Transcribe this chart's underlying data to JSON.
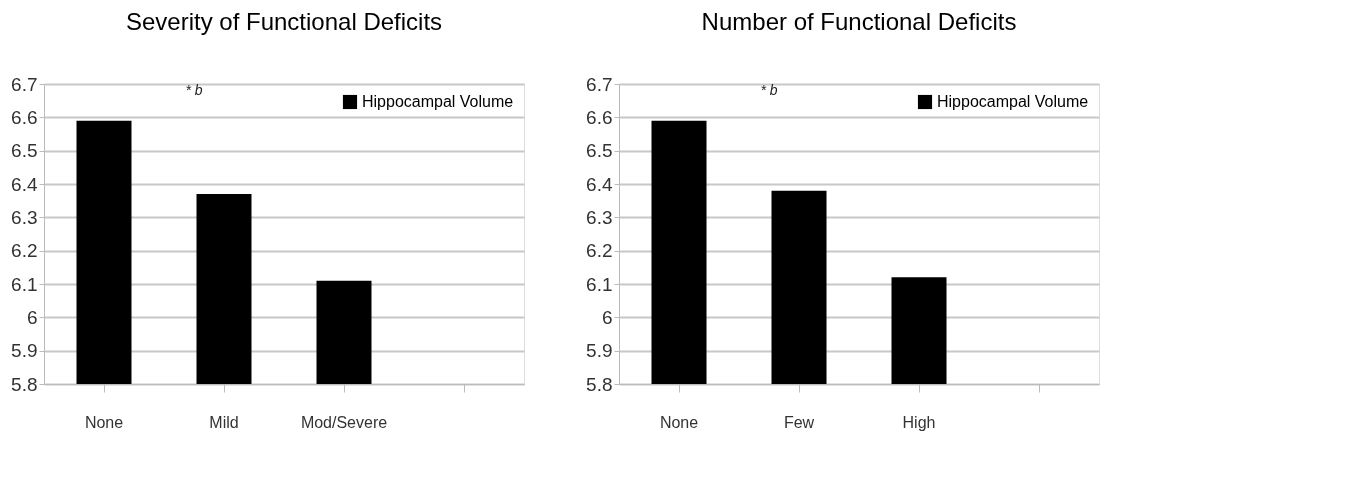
{
  "chart_data": [
    {
      "type": "bar",
      "title": "Severity of Functional Deficits",
      "categories": [
        "None",
        "Mild",
        "Mod/Severe",
        null
      ],
      "series": [
        {
          "name": "Hippocampal Volume",
          "color": "#000000",
          "values": [
            6.59,
            6.37,
            6.11,
            null
          ]
        }
      ],
      "ylim": [
        5.8,
        6.7
      ],
      "yticks": [
        5.8,
        5.9,
        6,
        6.1,
        6.2,
        6.3,
        6.4,
        6.5,
        6.6,
        6.7
      ],
      "grid": "y",
      "legend": "top right",
      "annotations": [
        "* b"
      ]
    },
    {
      "type": "bar",
      "title": "Number of Functional Deficits",
      "categories": [
        "None",
        "Few",
        "High",
        null
      ],
      "series": [
        {
          "name": "Hippocampal Volume",
          "color": "#000000",
          "values": [
            6.59,
            6.38,
            6.12,
            null
          ]
        }
      ],
      "ylim": [
        5.8,
        6.7
      ],
      "yticks": [
        5.8,
        5.9,
        6,
        6.1,
        6.2,
        6.3,
        6.4,
        6.5,
        6.6,
        6.7
      ],
      "grid": "y",
      "legend": "top right",
      "annotations": [
        "* b"
      ]
    }
  ]
}
